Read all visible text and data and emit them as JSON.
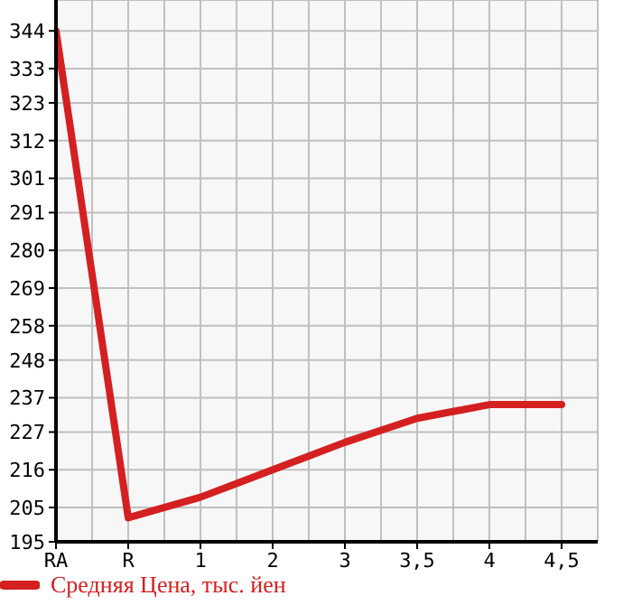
{
  "chart_data": {
    "type": "line",
    "categories": [
      "RA",
      "R",
      "1",
      "2",
      "3",
      "3,5",
      "4",
      "4,5"
    ],
    "series": [
      {
        "name": "Средняя Цена, тыс. йен",
        "color": "#d42020",
        "values": [
          344,
          202,
          208,
          216,
          224,
          231,
          235,
          235
        ]
      }
    ],
    "ylim": [
      195,
      353
    ],
    "yticks": [
      195,
      205,
      216,
      227,
      237,
      248,
      258,
      269,
      280,
      291,
      301,
      312,
      323,
      333,
      344
    ],
    "grid": true,
    "legend": "bottom"
  }
}
